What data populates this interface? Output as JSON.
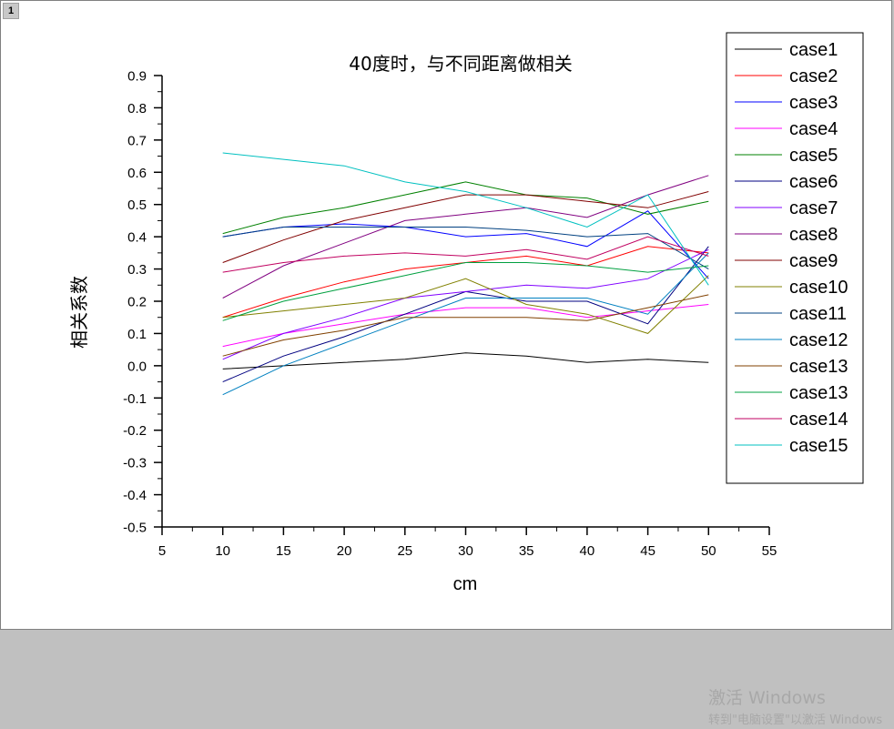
{
  "window": {
    "page_number": "1"
  },
  "watermark": {
    "line1": "激活 Windows",
    "line2": "转到\"电脑设置\"以激活 Windows"
  },
  "chart_data": {
    "type": "line",
    "title": "40度时，与不同距离做相关",
    "xlabel": "cm",
    "ylabel": "相关系数",
    "xlim": [
      5,
      55
    ],
    "ylim": [
      -0.5,
      0.9
    ],
    "xticks": [
      5,
      10,
      15,
      20,
      25,
      30,
      35,
      40,
      45,
      50,
      55
    ],
    "xtick_labels": [
      "5",
      "10",
      "15",
      "20",
      "25",
      "30",
      "35",
      "40",
      "45",
      "50",
      "55"
    ],
    "yticks": [
      -0.5,
      -0.4,
      -0.3,
      -0.2,
      -0.1,
      0.0,
      0.1,
      0.2,
      0.3,
      0.4,
      0.5,
      0.6,
      0.7,
      0.8,
      0.9
    ],
    "ytick_labels": [
      "-0.5",
      "-0.4",
      "-0.3",
      "-0.2",
      "-0.1",
      "0.0",
      "0.1",
      "0.2",
      "0.3",
      "0.4",
      "0.5",
      "0.6",
      "0.7",
      "0.8",
      "0.9"
    ],
    "grid": false,
    "legend_position": "top-right",
    "x": [
      10,
      15,
      20,
      25,
      30,
      35,
      40,
      45,
      50
    ],
    "series": [
      {
        "name": "case1",
        "color": "#000000",
        "values": [
          -0.01,
          0.0,
          0.01,
          0.02,
          0.04,
          0.03,
          0.01,
          0.02,
          0.01
        ]
      },
      {
        "name": "case2",
        "color": "#ff0000",
        "values": [
          0.15,
          0.21,
          0.26,
          0.3,
          0.32,
          0.34,
          0.31,
          0.37,
          0.35
        ]
      },
      {
        "name": "case3",
        "color": "#0000ff",
        "values": [
          0.4,
          0.43,
          0.44,
          0.43,
          0.4,
          0.41,
          0.37,
          0.48,
          0.27
        ]
      },
      {
        "name": "case4",
        "color": "#ff00ff",
        "values": [
          0.06,
          0.1,
          0.13,
          0.16,
          0.18,
          0.18,
          0.15,
          0.17,
          0.19
        ]
      },
      {
        "name": "case5",
        "color": "#008000",
        "values": [
          0.41,
          0.46,
          0.49,
          0.53,
          0.57,
          0.53,
          0.52,
          0.47,
          0.51
        ]
      },
      {
        "name": "case6",
        "color": "#000080",
        "values": [
          -0.05,
          0.03,
          0.09,
          0.16,
          0.23,
          0.2,
          0.2,
          0.13,
          0.37
        ]
      },
      {
        "name": "case7",
        "color": "#8000ff",
        "values": [
          0.02,
          0.1,
          0.15,
          0.21,
          0.23,
          0.25,
          0.24,
          0.27,
          0.36
        ]
      },
      {
        "name": "case8",
        "color": "#800080",
        "values": [
          0.21,
          0.31,
          0.38,
          0.45,
          0.47,
          0.49,
          0.46,
          0.53,
          0.59
        ]
      },
      {
        "name": "case9",
        "color": "#800000",
        "values": [
          0.32,
          0.39,
          0.45,
          0.49,
          0.53,
          0.53,
          0.51,
          0.49,
          0.54
        ]
      },
      {
        "name": "case10",
        "color": "#808000",
        "values": [
          0.15,
          0.17,
          0.19,
          0.21,
          0.27,
          0.19,
          0.16,
          0.1,
          0.28
        ]
      },
      {
        "name": "case11",
        "color": "#004080",
        "values": [
          0.4,
          0.43,
          0.43,
          0.43,
          0.43,
          0.42,
          0.4,
          0.41,
          0.3
        ]
      },
      {
        "name": "case12",
        "color": "#0080c0",
        "values": [
          -0.09,
          0.0,
          0.07,
          0.14,
          0.21,
          0.21,
          0.21,
          0.16,
          0.35
        ]
      },
      {
        "name": "case13",
        "color": "#804000",
        "values": [
          0.03,
          0.08,
          0.11,
          0.15,
          0.15,
          0.15,
          0.14,
          0.18,
          0.22
        ]
      },
      {
        "name": "case13",
        "color": "#00a040",
        "values": [
          0.14,
          0.2,
          0.24,
          0.28,
          0.32,
          0.32,
          0.31,
          0.29,
          0.31
        ]
      },
      {
        "name": "case14",
        "color": "#c00060",
        "values": [
          0.29,
          0.32,
          0.34,
          0.35,
          0.34,
          0.36,
          0.33,
          0.4,
          0.34
        ]
      },
      {
        "name": "case15",
        "color": "#00c0c0",
        "values": [
          0.66,
          0.64,
          0.62,
          0.57,
          0.54,
          0.49,
          0.43,
          0.53,
          0.25
        ]
      }
    ]
  }
}
